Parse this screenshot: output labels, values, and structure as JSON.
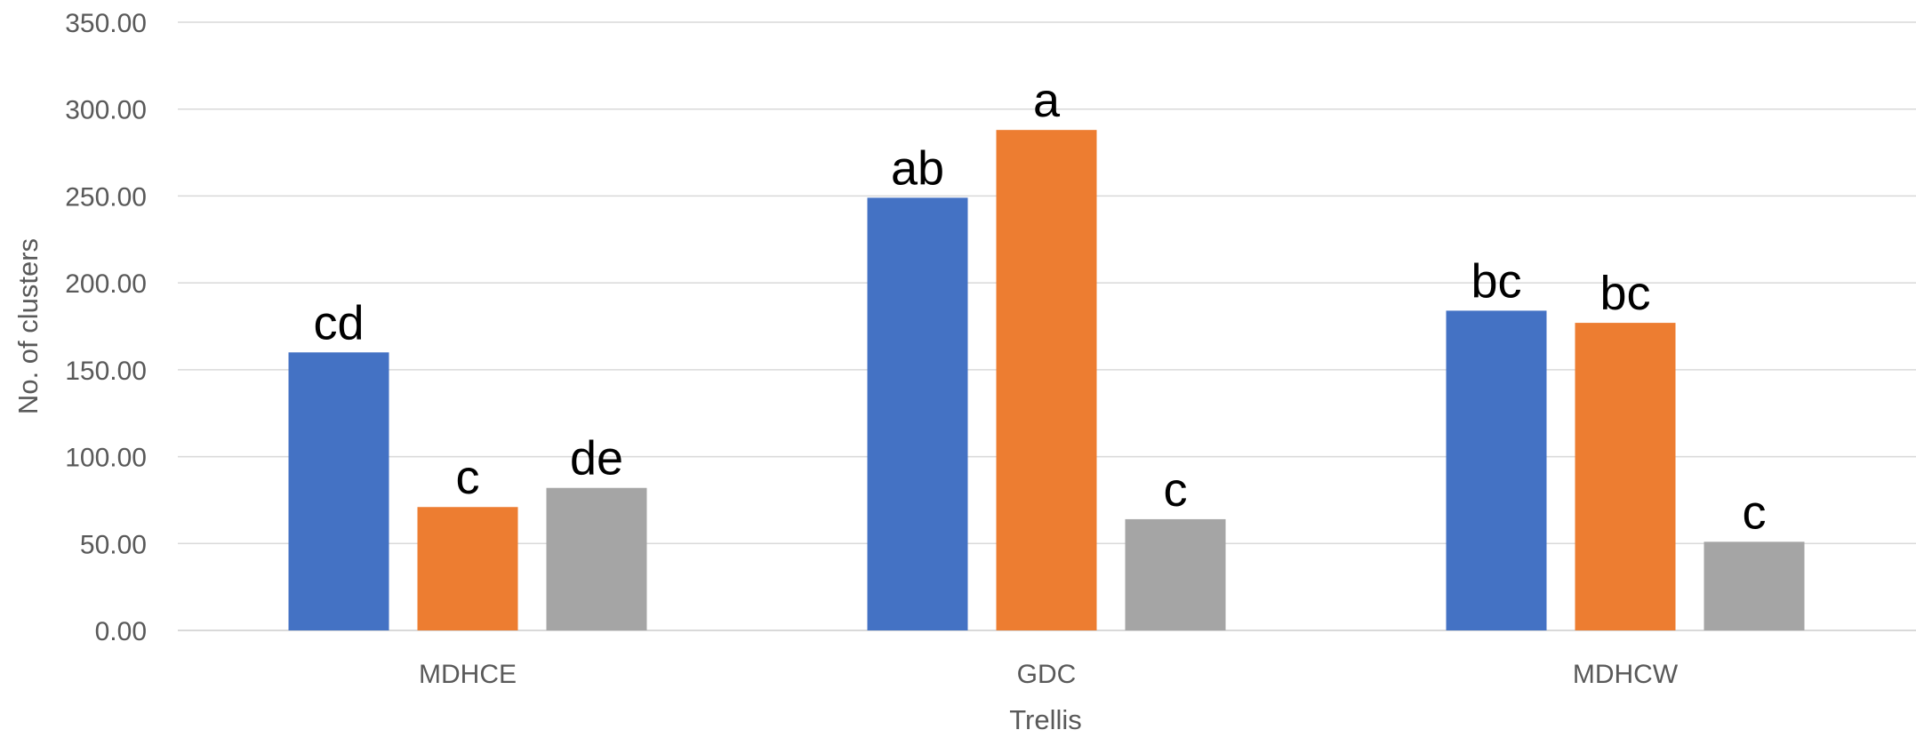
{
  "chart_data": {
    "type": "bar",
    "title": "",
    "xlabel": "Trellis",
    "ylabel": "No. of clusters",
    "ylim": [
      0,
      350
    ],
    "yticks": [
      "0.00",
      "50.00",
      "100.00",
      "150.00",
      "200.00",
      "250.00",
      "300.00",
      "350.00"
    ],
    "grid": true,
    "legend": "none",
    "categories": [
      "MDHCE",
      "GDC",
      "MDHCW"
    ],
    "series": [
      {
        "color": "#4472C4",
        "values": [
          160,
          249,
          184
        ],
        "labels": [
          "cd",
          "ab",
          "bc"
        ]
      },
      {
        "color": "#ED7D31",
        "values": [
          71,
          288,
          177
        ],
        "labels": [
          "c",
          "a",
          "bc"
        ]
      },
      {
        "color": "#A5A5A5",
        "values": [
          82,
          64,
          51
        ],
        "labels": [
          "de",
          "c",
          "c"
        ]
      }
    ]
  }
}
